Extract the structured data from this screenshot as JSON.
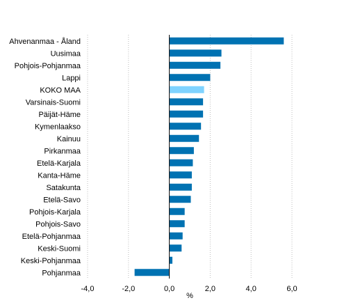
{
  "chart_data": {
    "type": "bar",
    "orientation": "horizontal",
    "categories": [
      "Ahvenanmaa - Åland",
      "Uusimaa",
      "Pohjois-Pohjanmaa",
      "Lappi",
      "KOKO MAA",
      "Varsinais-Suomi",
      "Päijät-Häme",
      "Kymenlaakso",
      "Kainuu",
      "Pirkanmaa",
      "Etelä-Karjala",
      "Kanta-Häme",
      "Satakunta",
      "Etelä-Savo",
      "Pohjois-Karjala",
      "Pohjois-Savo",
      "Etelä-Pohjanmaa",
      "Keski-Suomi",
      "Keski-Pohjanmaa",
      "Pohjanmaa"
    ],
    "values": [
      5.6,
      2.55,
      2.5,
      2.0,
      1.7,
      1.65,
      1.65,
      1.55,
      1.45,
      1.2,
      1.15,
      1.1,
      1.1,
      1.05,
      0.75,
      0.75,
      0.65,
      0.6,
      0.15,
      -1.7
    ],
    "highlight_category": "KOKO MAA",
    "xlim": [
      -4,
      6
    ],
    "x_ticks": [
      -4,
      -2,
      0,
      2,
      4,
      6
    ],
    "x_tick_labels": [
      "-4,0",
      "-2,0",
      "0,0",
      "2,0",
      "4,0",
      "6,0"
    ],
    "xlabel": "%",
    "ylabel": "",
    "title": "",
    "grid": "vertical dotted",
    "legend": "none",
    "colors": {
      "bar": "#0072B2",
      "highlight": "#7FD3FF",
      "grid": "#BDBDBD",
      "axis": "#000000"
    }
  }
}
